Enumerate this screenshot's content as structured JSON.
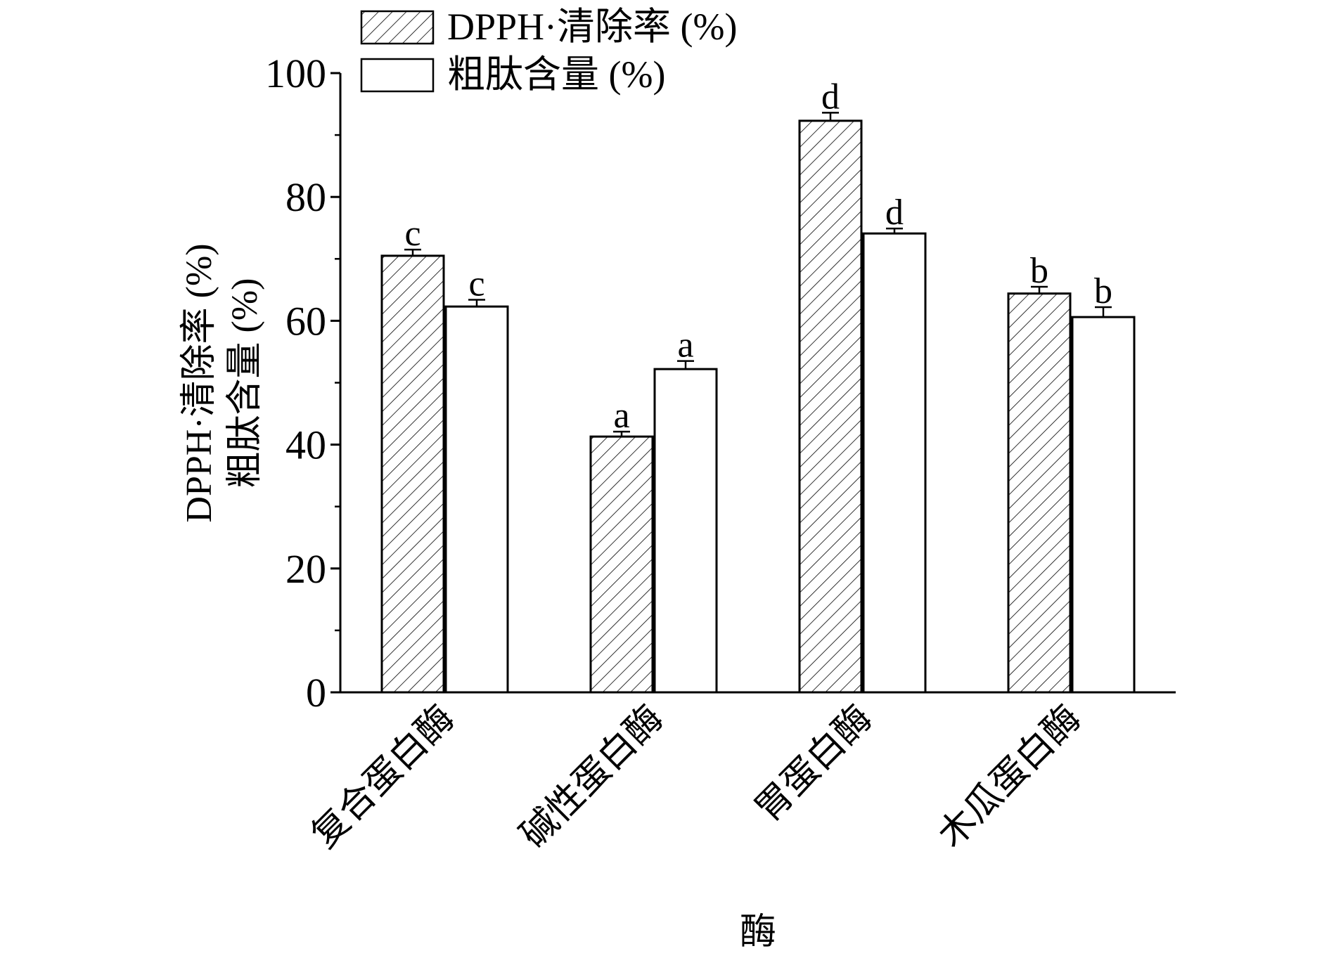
{
  "chart_data": {
    "type": "bar",
    "title": "",
    "xlabel": "酶",
    "ylabel_lines": [
      "DPPH·清除率 (%)",
      "粗肽含量 (%)"
    ],
    "ylim": [
      0,
      100
    ],
    "yticks": [
      0,
      20,
      40,
      60,
      80,
      100
    ],
    "ytick_labels": [
      "0",
      "20",
      "40",
      "60",
      "80",
      "100"
    ],
    "grid": false,
    "legend_position": "top-left",
    "categories": [
      "复合蛋白酶",
      "碱性蛋白酶",
      "胃蛋白酶",
      "木瓜蛋白酶"
    ],
    "series": [
      {
        "name": "DPPH·清除率 (%)",
        "fill": "hatched",
        "values": [
          70.5,
          41.3,
          92.3,
          64.4
        ],
        "errors": [
          1.0,
          0.8,
          1.3,
          1.1
        ],
        "labels": [
          "c",
          "a",
          "d",
          "b"
        ]
      },
      {
        "name": "粗肽含量 (%)",
        "fill": "white",
        "values": [
          62.3,
          52.2,
          74.1,
          60.6
        ],
        "errors": [
          1.1,
          1.3,
          0.8,
          1.6
        ],
        "labels": [
          "c",
          "a",
          "d",
          "b"
        ]
      }
    ],
    "colors": {
      "ink": "#000000",
      "background": "#ffffff"
    }
  }
}
